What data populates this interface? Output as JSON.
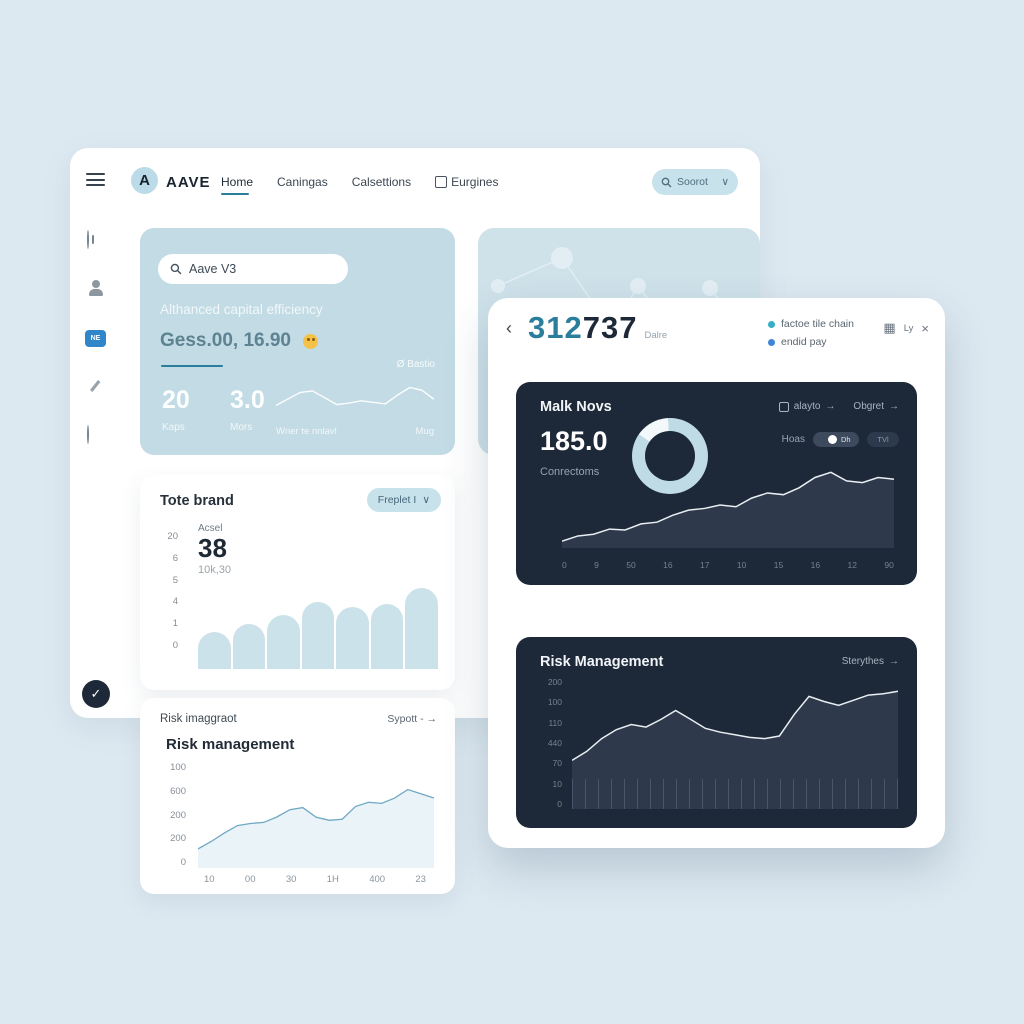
{
  "colors": {
    "bg": "#dde9f1",
    "panel": "#ffffff",
    "pale": "#c2dbe4",
    "pill": "#c8e2ec",
    "accent": "#2b7d9c",
    "navy": "#1d2838",
    "navy_area": "#2e3a4b",
    "ring": "#bedbe6",
    "blue": "#2f86c8",
    "bar": "#cbe2ea",
    "line_light": "#6fa8c4"
  },
  "icons": {
    "chevron_down": "∨",
    "arrow": "→",
    "back": "‹",
    "close": "×",
    "grid": "▦",
    "check": "✓"
  },
  "topbar": {
    "logo_letter": "A",
    "brand": "AAVE",
    "nav": [
      {
        "label": "Home",
        "active": true
      },
      {
        "label": "Caningas"
      },
      {
        "label": "Calsettions"
      },
      {
        "label": "Eurgines"
      }
    ],
    "search_label": "Soorot"
  },
  "sidebar": {
    "badge_text": "NE"
  },
  "hero": {
    "search_value": "Aave V3",
    "headline": "Althanced capital efficiency",
    "metric": "Gess.00, 16.90",
    "emoji": "🤗",
    "badge": "Ø Bastio",
    "stats": [
      {
        "value": "20",
        "label": "Kaps"
      },
      {
        "value": "3.0",
        "label": "Mors"
      }
    ],
    "spark_caption_left": "Wner te nnlavl",
    "spark_caption_right": "Mug",
    "spark": [
      28,
      45,
      62,
      66,
      48,
      30,
      34,
      40,
      36,
      32,
      55,
      75,
      68,
      44
    ]
  },
  "tote_card": {
    "title": "Tote brand",
    "dropdown_label": "Freplet I",
    "y_ticks": [
      "20",
      "6",
      "5",
      "4",
      "1",
      "0"
    ],
    "stat_label": "Acsel",
    "stat_value": "38",
    "stat_sub": "10k,30",
    "bars": [
      44,
      54,
      64,
      80,
      74,
      77,
      96
    ]
  },
  "risk_light_card": {
    "eyebrow": "Risk imaggraot",
    "link_label": "Sypott -",
    "title": "Risk management",
    "y_ticks": [
      "100",
      "600",
      "200",
      "200",
      "0"
    ],
    "x_ticks": [
      "10",
      "00",
      "30",
      "1H",
      "400",
      "23"
    ],
    "series": [
      18,
      25,
      33,
      40,
      42,
      43,
      48,
      55,
      57,
      48,
      45,
      46,
      58,
      62,
      61,
      66,
      74,
      70,
      66
    ]
  },
  "overlay": {
    "number_primary": "312",
    "number_secondary": "737",
    "number_suffix": "Dalre",
    "meta": [
      {
        "label": "factoe tile chain"
      },
      {
        "label": "endid pay"
      }
    ],
    "tools_label": "Ly",
    "card1": {
      "title": "Malk Novs",
      "link_a": "alayto",
      "link_b": "Obgret",
      "value": "185.0",
      "value_label": "Conrectoms",
      "toggle_label": "Hoas",
      "toggle_on": "Dh",
      "toggle_off": "TVl",
      "x_ticks": [
        "0",
        "9",
        "50",
        "16",
        "17",
        "10",
        "15",
        "16",
        "12",
        "90"
      ],
      "series": [
        8,
        14,
        16,
        22,
        21,
        28,
        30,
        38,
        44,
        46,
        50,
        48,
        58,
        64,
        62,
        70,
        82,
        88,
        78,
        76,
        82,
        80
      ]
    },
    "card2": {
      "title": "Risk Management",
      "link_label": "Sterythes",
      "y_ticks": [
        "200",
        "100",
        "110",
        "440",
        "70",
        "10",
        "0"
      ],
      "series": [
        38,
        45,
        55,
        62,
        66,
        64,
        70,
        77,
        70,
        63,
        60,
        58,
        56,
        55,
        57,
        74,
        88,
        84,
        81,
        85,
        89,
        90,
        92
      ]
    }
  }
}
